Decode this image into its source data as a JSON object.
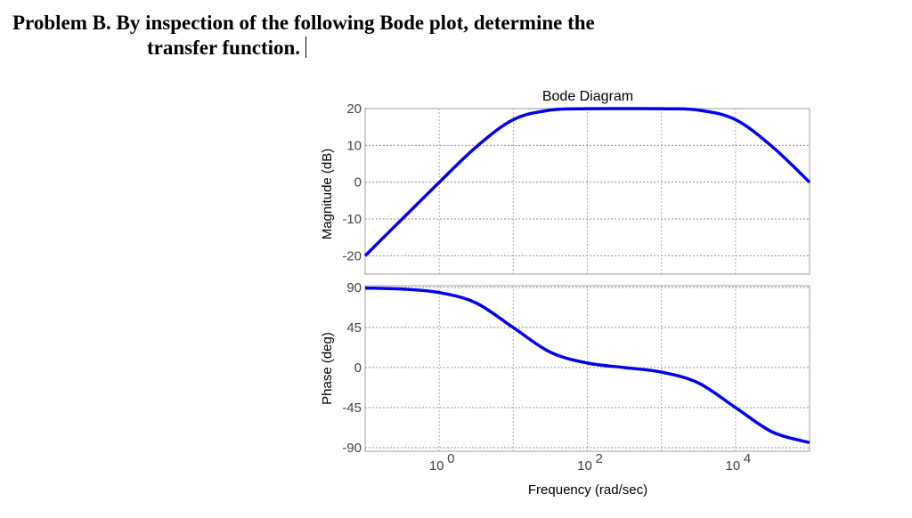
{
  "problem": {
    "line1": "Problem B.  By inspection of the following Bode plot, determine the",
    "line2": "transfer function."
  },
  "chart_data": [
    {
      "type": "line",
      "title": "Bode Diagram",
      "ylabel": "Magnitude (dB)",
      "xlabel": "",
      "xscale": "log",
      "xlim": [
        0.1,
        100000
      ],
      "ylim": [
        -25,
        20
      ],
      "yticks": [
        20,
        10,
        0,
        -10,
        -20
      ],
      "grid": true,
      "color": "#0000ee",
      "x": [
        0.1,
        0.316,
        1,
        3.16,
        10,
        31.6,
        100,
        316,
        1000,
        3162,
        10000,
        31623,
        100000
      ],
      "y": [
        -20,
        -10,
        -0.04,
        9.59,
        16.99,
        19.59,
        19.96,
        20.0,
        19.96,
        19.59,
        16.99,
        9.59,
        -0.04
      ]
    },
    {
      "type": "line",
      "title": "",
      "ylabel": "Phase (deg)",
      "xlabel": "Frequency (rad/sec)",
      "xscale": "log",
      "xlim": [
        0.1,
        100000
      ],
      "ylim": [
        -94,
        92
      ],
      "yticks": [
        90,
        45,
        0,
        -45,
        -90
      ],
      "xticks": [
        {
          "value": 1,
          "base": "10",
          "exp": "0"
        },
        {
          "value": 100,
          "base": "10",
          "exp": "2"
        },
        {
          "value": 10000,
          "base": "10",
          "exp": "4"
        }
      ],
      "grid": true,
      "color": "#0000ee",
      "x": [
        0.1,
        0.316,
        1,
        3.16,
        10,
        31.6,
        100,
        316,
        1000,
        3162,
        10000,
        31623,
        100000
      ],
      "y": [
        89.4,
        88.2,
        84.3,
        72.5,
        44.9,
        17.3,
        5.1,
        0.0,
        -5.1,
        -17.3,
        -44.9,
        -72.5,
        -84.3
      ]
    }
  ]
}
